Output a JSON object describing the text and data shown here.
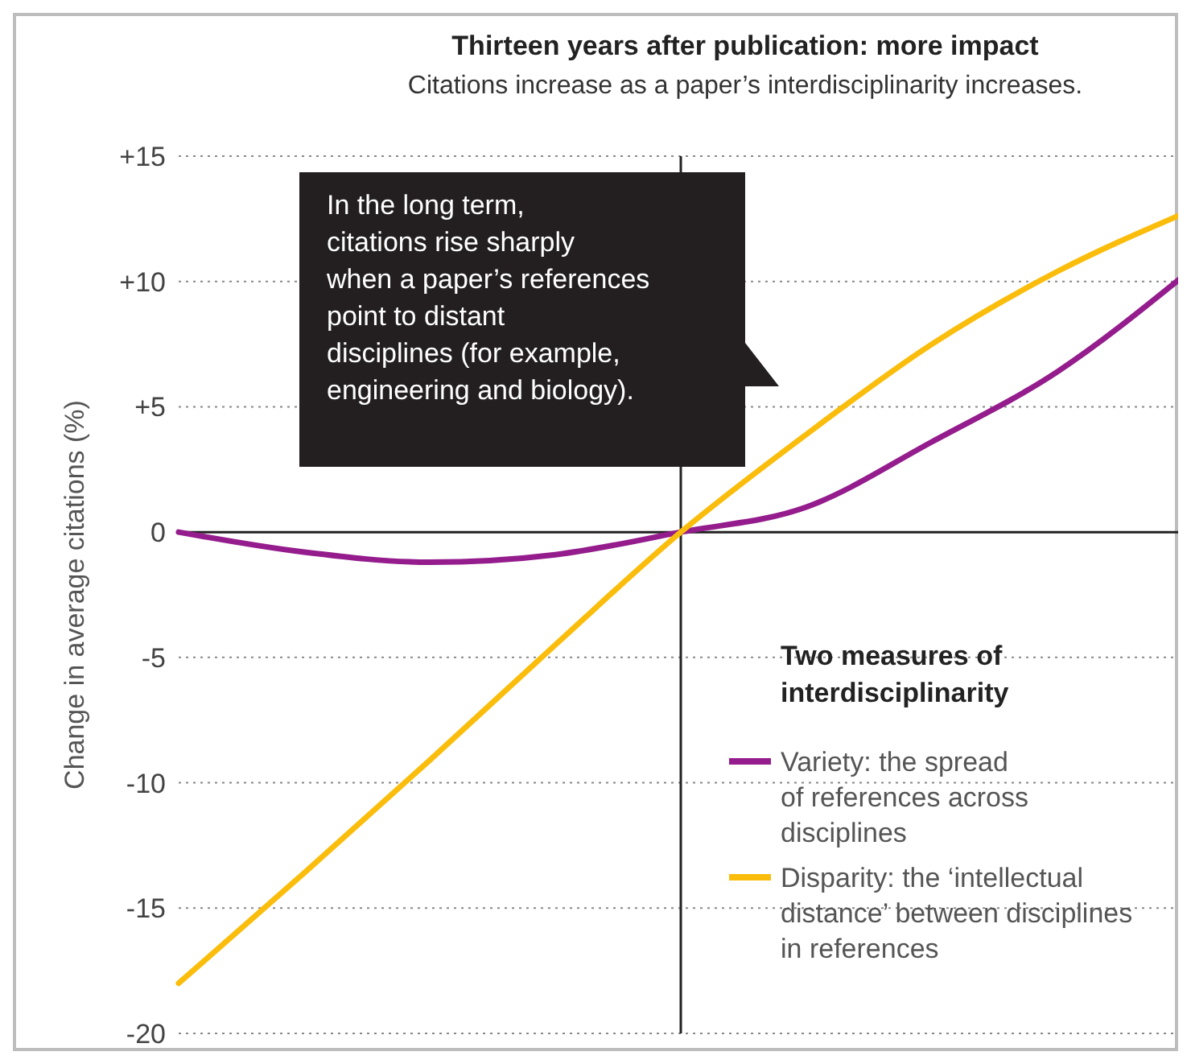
{
  "chart_data": {
    "type": "line",
    "title": "Thirteen years after publication: more impact",
    "subtitle": "Citations increase as a paper’s interdisciplinarity increases.",
    "ylabel": "Change in average citations (%)",
    "legend_title": "Two measures of interdisciplinarity",
    "categories": [
      null,
      null,
      null,
      null,
      null,
      null,
      null,
      null,
      null
    ],
    "series": [
      {
        "name": "Variety: the spread of references across disciplines",
        "color": "#941c8c",
        "values": [
          0,
          -0.8,
          -1.2,
          -0.9,
          0,
          1.0,
          3.6,
          6.4,
          10.2
        ]
      },
      {
        "name": "Disparity: the ‘intellectual distance’ between disciplines in references",
        "color": "#fbbd0c",
        "values": [
          -18,
          -13.6,
          -9.1,
          -4.5,
          0,
          3.9,
          7.5,
          10.4,
          12.7
        ]
      }
    ],
    "ylim": [
      -20,
      15
    ],
    "yticks": [
      {
        "value": -20,
        "label": "-20"
      },
      {
        "value": -15,
        "label": "-15"
      },
      {
        "value": -10,
        "label": "-10"
      },
      {
        "value": -5,
        "label": "-5"
      },
      0,
      {
        "value": 5,
        "label": "+5"
      },
      {
        "value": 10,
        "label": "+10"
      },
      {
        "value": 15,
        "label": "+15"
      }
    ],
    "grid": "y",
    "legend": "bottom right",
    "tick_labels": "y",
    "marker": "none",
    "line_style": "solid",
    "annotations": [
      "In the long term, citations rise sharply when a paper’s references point to distant disciplines (for example, engineering and biology)."
    ]
  }
}
